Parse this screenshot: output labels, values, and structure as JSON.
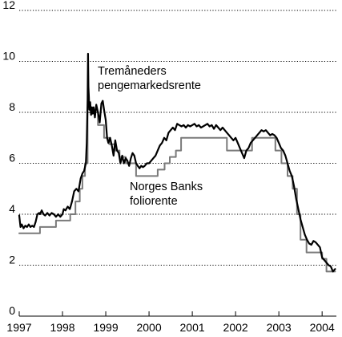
{
  "chart_data": {
    "type": "line",
    "title": "",
    "xlabel": "",
    "ylabel": "",
    "xlim": [
      1997.0,
      2004.33
    ],
    "ylim": [
      0,
      12
    ],
    "y_ticks": [
      0,
      2,
      4,
      6,
      8,
      10,
      12
    ],
    "x_ticks": [
      1997,
      1998,
      1999,
      2000,
      2001,
      2002,
      2003,
      2004
    ],
    "y_tick_labels": [
      "0",
      "2",
      "4",
      "6",
      "8",
      "10",
      "12"
    ],
    "x_tick_labels": [
      "1997",
      "1998",
      "1999",
      "2000",
      "2001",
      "2002",
      "2003",
      "2004"
    ],
    "grid": "horizontal dotted",
    "series": [
      {
        "color": "#000000",
        "x": [
          1997.0,
          1997.03,
          1997.06,
          1997.1,
          1997.14,
          1997.18,
          1997.22,
          1997.26,
          1997.3,
          1997.34,
          1997.38,
          1997.42,
          1997.46,
          1997.48,
          1997.52,
          1997.56,
          1997.6,
          1997.65,
          1997.7,
          1997.75,
          1997.8,
          1997.85,
          1997.9,
          1997.95,
          1998.0,
          1998.03,
          1998.07,
          1998.12,
          1998.17,
          1998.22,
          1998.27,
          1998.32,
          1998.37,
          1998.42,
          1998.46,
          1998.5,
          1998.54,
          1998.56,
          1998.58,
          1998.59,
          1998.6,
          1998.61,
          1998.62,
          1998.64,
          1998.66,
          1998.68,
          1998.7,
          1998.72,
          1998.75,
          1998.78,
          1998.82,
          1998.86,
          1998.9,
          1998.93,
          1998.96,
          1999.0,
          1999.03,
          1999.06,
          1999.1,
          1999.14,
          1999.18,
          1999.22,
          1999.26,
          1999.3,
          1999.34,
          1999.38,
          1999.42,
          1999.46,
          1999.5,
          1999.54,
          1999.58,
          1999.62,
          1999.66,
          1999.7,
          1999.74,
          1999.78,
          1999.82,
          1999.86,
          1999.9,
          1999.95,
          2000.0,
          2000.05,
          2000.1,
          2000.15,
          2000.2,
          2000.25,
          2000.3,
          2000.35,
          2000.4,
          2000.45,
          2000.5,
          2000.55,
          2000.6,
          2000.65,
          2000.7,
          2000.75,
          2000.8,
          2000.85,
          2000.9,
          2000.95,
          2001.0,
          2001.05,
          2001.1,
          2001.15,
          2001.2,
          2001.25,
          2001.3,
          2001.35,
          2001.4,
          2001.45,
          2001.5,
          2001.55,
          2001.6,
          2001.65,
          2001.7,
          2001.75,
          2001.8,
          2001.85,
          2001.9,
          2001.95,
          2002.0,
          2002.05,
          2002.1,
          2002.15,
          2002.2,
          2002.25,
          2002.3,
          2002.35,
          2002.4,
          2002.45,
          2002.5,
          2002.55,
          2002.6,
          2002.65,
          2002.7,
          2002.75,
          2002.8,
          2002.85,
          2002.9,
          2002.95,
          2003.0,
          2003.05,
          2003.1,
          2003.15,
          2003.2,
          2003.25,
          2003.3,
          2003.35,
          2003.4,
          2003.45,
          2003.5,
          2003.55,
          2003.6,
          2003.65,
          2003.7,
          2003.75,
          2003.8,
          2003.85,
          2003.9,
          2003.95,
          2004.0,
          2004.05,
          2004.1,
          2004.15,
          2004.2,
          2004.25,
          2004.3
        ],
        "y": [
          3.95,
          3.5,
          3.6,
          3.45,
          3.55,
          3.5,
          3.6,
          3.5,
          3.55,
          3.5,
          3.7,
          4.0,
          4.05,
          4.0,
          4.15,
          4.0,
          3.95,
          4.05,
          3.95,
          4.05,
          4.0,
          3.9,
          4.0,
          3.9,
          4.0,
          4.2,
          4.15,
          4.3,
          4.2,
          4.5,
          4.9,
          5.0,
          4.9,
          5.4,
          5.6,
          5.7,
          6.0,
          6.8,
          8.5,
          10.3,
          9.0,
          8.6,
          8.1,
          8.4,
          7.9,
          8.2,
          7.95,
          8.2,
          7.8,
          8.3,
          8.0,
          7.6,
          8.35,
          8.45,
          8.1,
          7.7,
          7.0,
          6.8,
          7.0,
          6.7,
          6.3,
          6.9,
          6.5,
          6.4,
          6.0,
          6.3,
          6.0,
          6.2,
          6.1,
          5.9,
          6.2,
          6.4,
          6.3,
          6.0,
          5.9,
          5.8,
          5.9,
          5.85,
          5.9,
          6.0,
          6.0,
          6.1,
          6.2,
          6.3,
          6.5,
          6.7,
          6.8,
          7.0,
          6.9,
          7.2,
          7.3,
          7.4,
          7.3,
          7.55,
          7.5,
          7.45,
          7.5,
          7.4,
          7.5,
          7.45,
          7.5,
          7.55,
          7.45,
          7.5,
          7.4,
          7.45,
          7.5,
          7.55,
          7.45,
          7.5,
          7.35,
          7.5,
          7.4,
          7.3,
          7.4,
          7.3,
          7.2,
          7.1,
          7.0,
          6.9,
          7.0,
          6.8,
          6.6,
          6.4,
          6.2,
          6.5,
          6.6,
          6.8,
          6.9,
          7.0,
          7.1,
          7.2,
          7.3,
          7.25,
          7.3,
          7.2,
          7.1,
          7.15,
          7.1,
          7.0,
          6.8,
          6.6,
          6.5,
          6.3,
          6.0,
          5.7,
          5.5,
          5.1,
          4.6,
          4.2,
          3.8,
          3.5,
          3.2,
          3.0,
          2.85,
          2.8,
          2.95,
          2.9,
          2.8,
          2.7,
          2.3,
          2.2,
          2.1,
          2.0,
          1.95,
          1.75,
          1.85
        ]
      },
      {
        "color": "#7a7a7a",
        "x": [
          1997.0,
          1997.48,
          1997.48,
          1997.85,
          1997.85,
          1998.18,
          1998.18,
          1998.3,
          1998.3,
          1998.4,
          1998.4,
          1998.46,
          1998.46,
          1998.52,
          1998.52,
          1998.58,
          1998.58,
          1998.82,
          1998.82,
          1998.96,
          1998.96,
          1999.08,
          1999.08,
          1999.22,
          1999.22,
          1999.32,
          1999.32,
          1999.46,
          1999.46,
          1999.7,
          1999.7,
          2000.2,
          2000.2,
          2000.36,
          2000.36,
          2000.48,
          2000.48,
          2000.62,
          2000.62,
          2000.74,
          2000.74,
          2001.8,
          2001.8,
          2002.05,
          2002.05,
          2002.38,
          2002.38,
          2002.92,
          2002.92,
          2003.06,
          2003.06,
          2003.2,
          2003.2,
          2003.32,
          2003.32,
          2003.42,
          2003.42,
          2003.5,
          2003.5,
          2003.55,
          2003.55,
          2003.64,
          2003.64,
          2003.75,
          2003.75,
          2004.0,
          2004.0,
          2004.1,
          2004.1,
          2004.3
        ],
        "y": [
          3.25,
          3.25,
          3.5,
          3.5,
          3.75,
          3.75,
          4.0,
          4.0,
          4.5,
          4.5,
          5.0,
          5.0,
          5.5,
          5.5,
          6.0,
          6.0,
          8.0,
          8.0,
          7.5,
          7.5,
          7.0,
          7.0,
          6.75,
          6.75,
          6.5,
          6.5,
          6.25,
          6.25,
          6.0,
          6.0,
          5.5,
          5.5,
          5.75,
          5.75,
          6.0,
          6.0,
          6.25,
          6.25,
          6.5,
          6.5,
          7.0,
          7.0,
          6.5,
          6.5,
          6.5,
          6.5,
          7.0,
          7.0,
          6.5,
          6.5,
          6.0,
          6.0,
          5.5,
          5.5,
          5.0,
          5.0,
          4.0,
          4.0,
          3.0,
          3.0,
          3.0,
          3.0,
          2.5,
          2.5,
          2.5,
          2.5,
          2.25,
          2.25,
          1.75,
          1.75
        ]
      }
    ],
    "annotations": [
      {
        "lines": [
          "Tremåneders",
          "pengemarkedsrente"
        ]
      },
      {
        "lines": [
          "Norges Banks",
          "foliorente"
        ]
      }
    ]
  }
}
